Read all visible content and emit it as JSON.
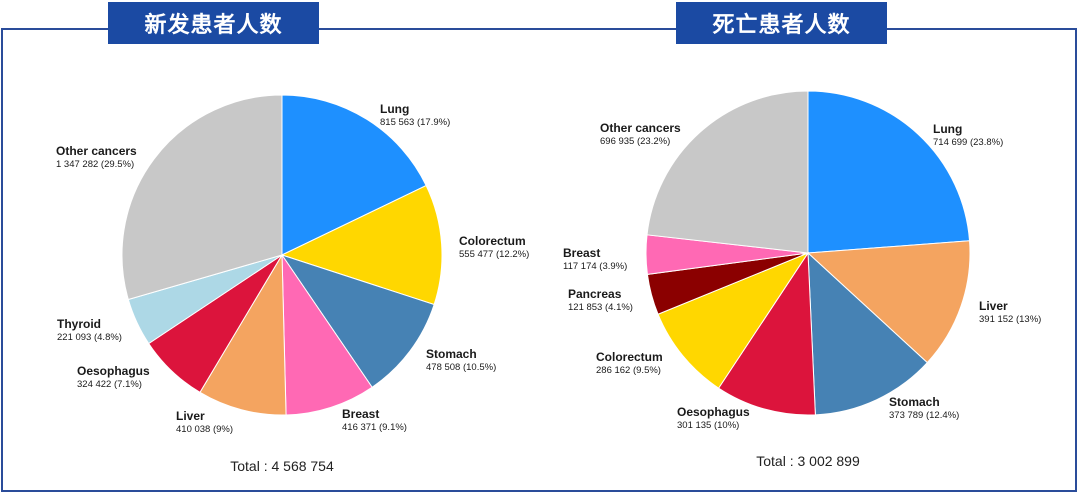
{
  "titles": {
    "left": "新发患者人数",
    "right": "死亡患者人数"
  },
  "chart_data": [
    {
      "type": "pie",
      "title": "新发患者人数",
      "total_label": "Total : 4 568 754",
      "slices": [
        {
          "name": "Lung",
          "value": 815563,
          "value_label": "815 563 (17.9%)",
          "color": "#1e90ff"
        },
        {
          "name": "Colorectum",
          "value": 555477,
          "value_label": "555 477 (12.2%)",
          "color": "#ffd700"
        },
        {
          "name": "Stomach",
          "value": 478508,
          "value_label": "478 508 (10.5%)",
          "color": "#4682b4"
        },
        {
          "name": "Breast",
          "value": 416371,
          "value_label": "416 371 (9.1%)",
          "color": "#ff69b4"
        },
        {
          "name": "Liver",
          "value": 410038,
          "value_label": "410 038 (9%)",
          "color": "#f4a460"
        },
        {
          "name": "Oesophagus",
          "value": 324422,
          "value_label": "324 422 (7.1%)",
          "color": "#dc143c"
        },
        {
          "name": "Thyroid",
          "value": 221093,
          "value_label": "221 093 (4.8%)",
          "color": "#add8e6"
        },
        {
          "name": "Other cancers",
          "value": 1347282,
          "value_label": "1 347 282 (29.5%)",
          "color": "#c8c8c8"
        }
      ]
    },
    {
      "type": "pie",
      "title": "死亡患者人数",
      "total_label": "Total : 3 002 899",
      "slices": [
        {
          "name": "Lung",
          "value": 714699,
          "value_label": "714 699 (23.8%)",
          "color": "#1e90ff"
        },
        {
          "name": "Liver",
          "value": 391152,
          "value_label": "391 152 (13%)",
          "color": "#f4a460"
        },
        {
          "name": "Stomach",
          "value": 373789,
          "value_label": "373 789 (12.4%)",
          "color": "#4682b4"
        },
        {
          "name": "Oesophagus",
          "value": 301135,
          "value_label": "301 135 (10%)",
          "color": "#dc143c"
        },
        {
          "name": "Colorectum",
          "value": 286162,
          "value_label": "286 162 (9.5%)",
          "color": "#ffd700"
        },
        {
          "name": "Pancreas",
          "value": 121853,
          "value_label": "121 853 (4.1%)",
          "color": "#8b0000"
        },
        {
          "name": "Breast",
          "value": 117174,
          "value_label": "117 174 (3.9%)",
          "color": "#ff69b4"
        },
        {
          "name": "Other cancers",
          "value": 696935,
          "value_label": "696 935 (23.2%)",
          "color": "#c8c8c8"
        }
      ]
    }
  ]
}
